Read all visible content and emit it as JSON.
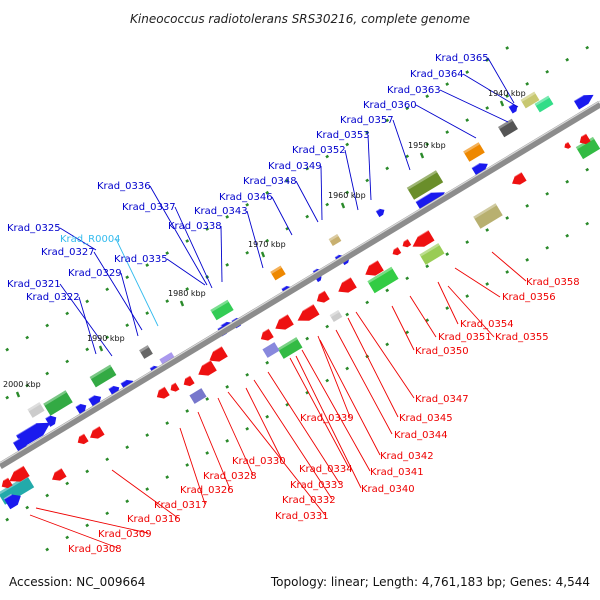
{
  "title": "Kineococcus radiotolerans SRS30216, complete genome",
  "accession": "Accession: NC_009664",
  "summary": "Topology: linear; Length: 4,761,183 bp; Genes: 4,544",
  "colors": {
    "forward_label": "#0000cc",
    "reverse_label": "#ee0000",
    "rna_label": "#33bbee",
    "forward_gene": "#1a1aee",
    "reverse_gene": "#ee1111",
    "backbone": "#888888",
    "tick_dash": "#2a8a2a"
  },
  "ticks": [
    {
      "label": "2000 kbp",
      "kbp": 2000
    },
    {
      "label": "1990 kbp",
      "kbp": 1990
    },
    {
      "label": "1980 kbp",
      "kbp": 1980
    },
    {
      "label": "1970 kbp",
      "kbp": 1970
    },
    {
      "label": "1960 kbp",
      "kbp": 1960
    },
    {
      "label": "1950 kbp",
      "kbp": 1950
    },
    {
      "label": "1940 kbp",
      "kbp": 1940
    }
  ],
  "forward_labels": [
    {
      "text": "Krad_0365"
    },
    {
      "text": "Krad_0364"
    },
    {
      "text": "Krad_0363"
    },
    {
      "text": "Krad_0360"
    },
    {
      "text": "Krad_0357"
    },
    {
      "text": "Krad_0353"
    },
    {
      "text": "Krad_0352"
    },
    {
      "text": "Krad_0349"
    },
    {
      "text": "Krad_0348"
    },
    {
      "text": "Krad_0346"
    },
    {
      "text": "Krad_0336"
    },
    {
      "text": "Krad_0337"
    },
    {
      "text": "Krad_0343"
    },
    {
      "text": "Krad_0338"
    },
    {
      "text": "Krad_0325"
    },
    {
      "text": "Krad_R0004"
    },
    {
      "text": "Krad_0327"
    },
    {
      "text": "Krad_0335"
    },
    {
      "text": "Krad_0329"
    },
    {
      "text": "Krad_0321"
    },
    {
      "text": "Krad_0322"
    }
  ],
  "reverse_labels": [
    {
      "text": "Krad_0358"
    },
    {
      "text": "Krad_0356"
    },
    {
      "text": "Krad_0354"
    },
    {
      "text": "Krad_0351"
    },
    {
      "text": "Krad_0355"
    },
    {
      "text": "Krad_0350"
    },
    {
      "text": "Krad_0347"
    },
    {
      "text": "Krad_0345"
    },
    {
      "text": "Krad_0339"
    },
    {
      "text": "Krad_0344"
    },
    {
      "text": "Krad_0342"
    },
    {
      "text": "Krad_0341"
    },
    {
      "text": "Krad_0330"
    },
    {
      "text": "Krad_0334"
    },
    {
      "text": "Krad_0340"
    },
    {
      "text": "Krad_0328"
    },
    {
      "text": "Krad_0333"
    },
    {
      "text": "Krad_0326"
    },
    {
      "text": "Krad_0332"
    },
    {
      "text": "Krad_0317"
    },
    {
      "text": "Krad_0331"
    },
    {
      "text": "Krad_0316"
    },
    {
      "text": "Krad_0309"
    },
    {
      "text": "Krad_0308"
    }
  ]
}
